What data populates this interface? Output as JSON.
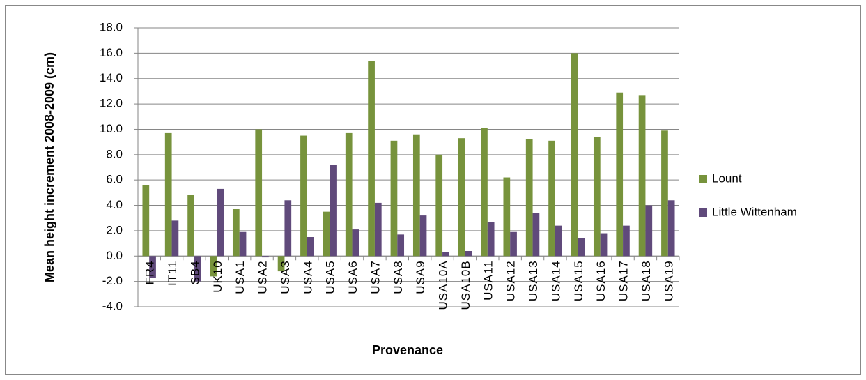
{
  "chart_data": {
    "type": "bar",
    "y_label": "Mean height increment 2008-2009 (cm)",
    "x_label": "Provenance",
    "categories": [
      "FR4",
      "IT11",
      "SB4",
      "UK10",
      "USA1",
      "USA2",
      "USA3",
      "USA4",
      "USA5",
      "USA6",
      "USA7",
      "USA8",
      "USA9",
      "USA10A",
      "USA10B",
      "USA11",
      "USA12",
      "USA13",
      "USA14",
      "USA15",
      "USA16",
      "USA17",
      "USA18",
      "USA19"
    ],
    "series": [
      {
        "name": "Lount",
        "color": "#77933c",
        "values": [
          5.6,
          9.7,
          4.8,
          -1.6,
          3.7,
          10.0,
          -1.2,
          9.5,
          3.5,
          9.7,
          15.4,
          9.1,
          9.6,
          8.0,
          9.3,
          10.1,
          6.2,
          9.2,
          9.1,
          16.0,
          9.4,
          12.9,
          12.7,
          9.9
        ]
      },
      {
        "name": "Little Wittenham",
        "color": "#604a7b",
        "values": [
          -1.7,
          2.8,
          -2.0,
          5.3,
          1.9,
          -0.1,
          4.4,
          1.5,
          7.2,
          2.1,
          4.2,
          1.7,
          3.2,
          0.3,
          0.4,
          2.7,
          1.9,
          3.4,
          2.4,
          1.4,
          1.8,
          2.4,
          4.0,
          4.4
        ]
      }
    ],
    "ylim": [
      -4,
      18
    ],
    "yticks": [
      {
        "value": -4,
        "label": "-4.0"
      },
      {
        "value": -2,
        "label": "-2.0"
      },
      {
        "value": 0,
        "label": "0.0"
      },
      {
        "value": 2,
        "label": "2.0"
      },
      {
        "value": 4,
        "label": "4.0"
      },
      {
        "value": 6,
        "label": "6.0"
      },
      {
        "value": 8,
        "label": "8.0"
      },
      {
        "value": 10,
        "label": "10.0"
      },
      {
        "value": 12,
        "label": "12.0"
      },
      {
        "value": 14,
        "label": "14.0"
      },
      {
        "value": 16,
        "label": "16.0"
      },
      {
        "value": 18,
        "label": "18.0"
      }
    ],
    "grid": true,
    "legend": "right"
  }
}
